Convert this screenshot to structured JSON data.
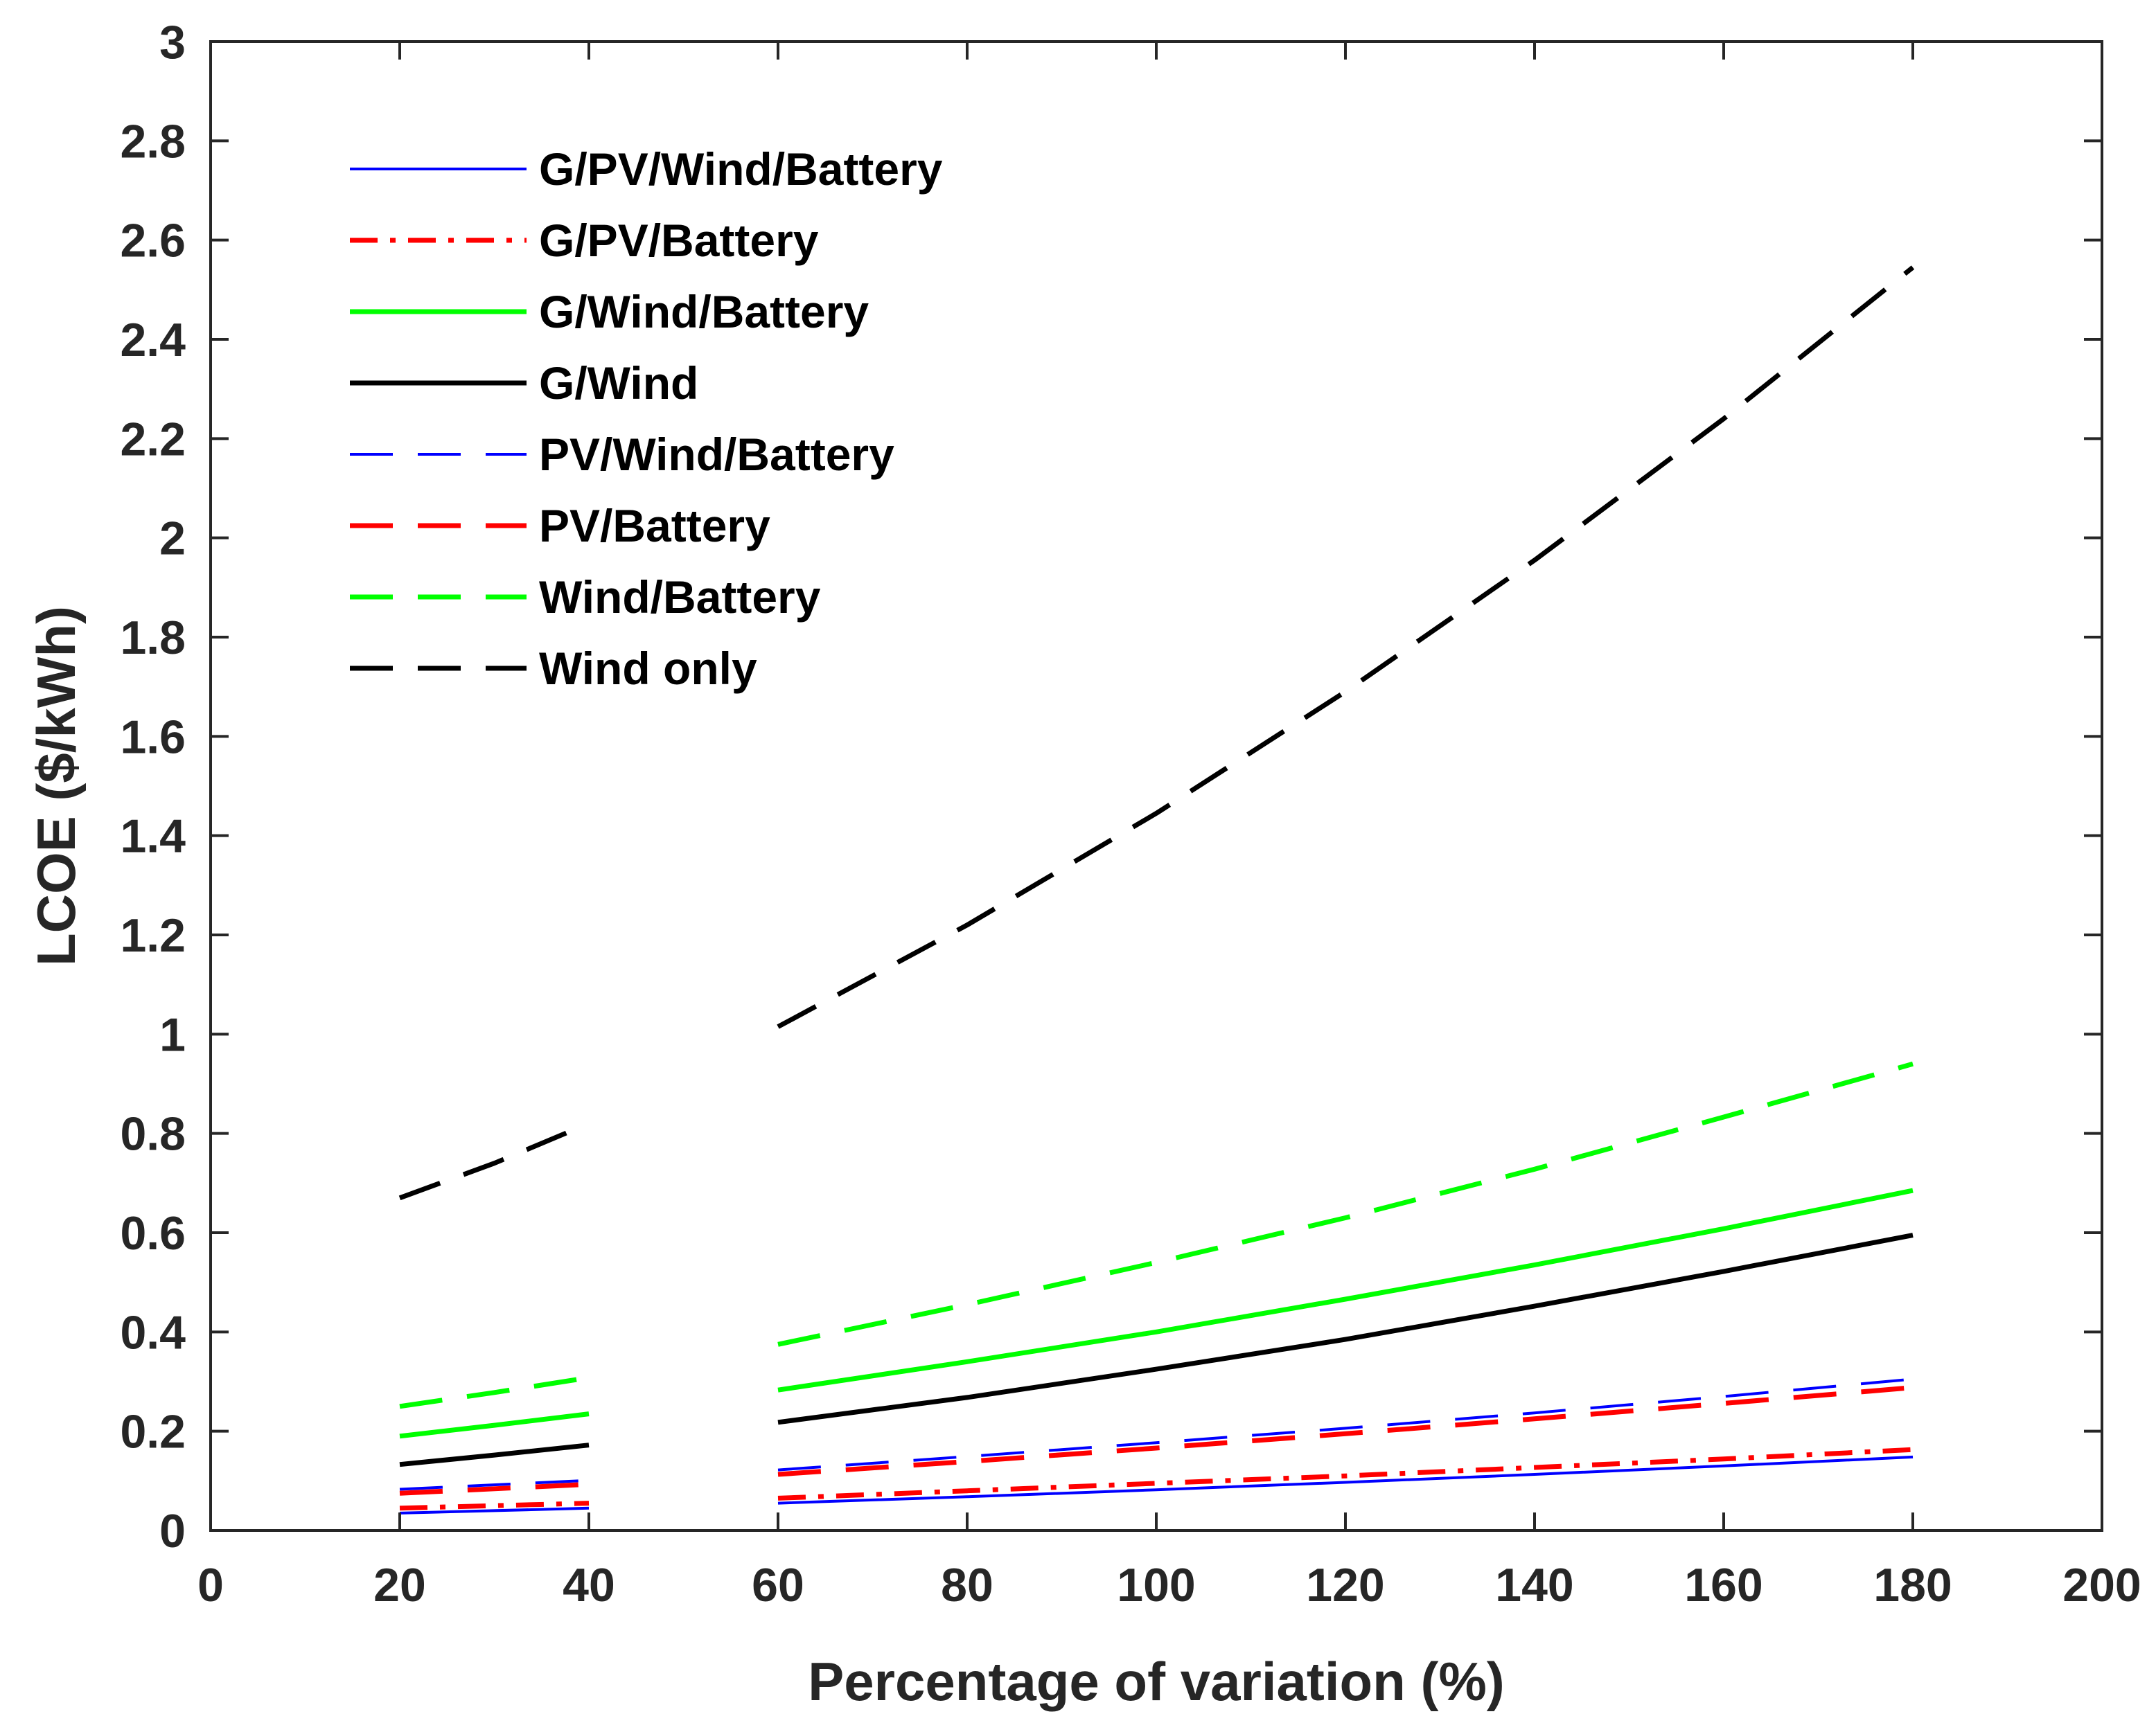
{
  "chart_data": {
    "type": "line",
    "title": "",
    "xlabel": "Percentage of variation (%)",
    "ylabel": "LCOE ($/kWh)",
    "xlim": [
      0,
      200
    ],
    "ylim": [
      0,
      3
    ],
    "xticks": [
      0,
      20,
      40,
      60,
      80,
      100,
      120,
      140,
      160,
      180,
      200
    ],
    "xtick_labels": [
      "0",
      "20",
      "40",
      "60",
      "80",
      "100",
      "120",
      "140",
      "160",
      "180",
      "200"
    ],
    "yticks": [
      0,
      0.2,
      0.4,
      0.6,
      0.8,
      1,
      1.2,
      1.4,
      1.6,
      1.8,
      2,
      2.2,
      2.4,
      2.6,
      2.8,
      3
    ],
    "ytick_labels": [
      "0",
      "0.2",
      "0.4",
      "0.6",
      "0.8",
      "1",
      "1.2",
      "1.4",
      "1.6",
      "1.8",
      "2",
      "2.2",
      "2.4",
      "2.6",
      "2.8",
      "3"
    ],
    "legend_position": "top-left",
    "series": [
      {
        "name": "G/PV/Wind/Battery",
        "color": "#0000ff",
        "style": "solid",
        "weight": "thin",
        "segments": [
          {
            "x": [
              20,
              40
            ],
            "y": [
              0.035,
              0.045
            ]
          },
          {
            "x": [
              60,
              80,
              100,
              120,
              140,
              160,
              180
            ],
            "y": [
              0.055,
              0.068,
              0.082,
              0.097,
              0.113,
              0.13,
              0.148
            ]
          }
        ]
      },
      {
        "name": "G/PV/Battery",
        "color": "#ff0000",
        "style": "dashdot",
        "weight": "thick",
        "segments": [
          {
            "x": [
              20,
              40
            ],
            "y": [
              0.045,
              0.055
            ]
          },
          {
            "x": [
              60,
              80,
              100,
              120,
              140,
              160,
              180
            ],
            "y": [
              0.065,
              0.08,
              0.095,
              0.11,
              0.127,
              0.144,
              0.163
            ]
          }
        ]
      },
      {
        "name": "G/Wind/Battery",
        "color": "#00ff00",
        "style": "solid",
        "weight": "thick",
        "segments": [
          {
            "x": [
              20,
              30,
              40
            ],
            "y": [
              0.19,
              0.212,
              0.235
            ]
          },
          {
            "x": [
              60,
              80,
              100,
              120,
              140,
              160,
              180
            ],
            "y": [
              0.283,
              0.34,
              0.4,
              0.466,
              0.535,
              0.608,
              0.685
            ]
          }
        ]
      },
      {
        "name": "G/Wind",
        "color": "#000000",
        "style": "solid",
        "weight": "thick",
        "segments": [
          {
            "x": [
              20,
              30,
              40
            ],
            "y": [
              0.133,
              0.152,
              0.172
            ]
          },
          {
            "x": [
              60,
              80,
              100,
              120,
              140,
              160,
              180
            ],
            "y": [
              0.218,
              0.268,
              0.325,
              0.385,
              0.452,
              0.522,
              0.595
            ]
          }
        ]
      },
      {
        "name": "PV/Wind/Battery",
        "color": "#0000ff",
        "style": "dashed",
        "weight": "thin",
        "segments": [
          {
            "x": [
              20,
              40
            ],
            "y": [
              0.083,
              0.101
            ]
          },
          {
            "x": [
              60,
              80,
              100,
              120,
              140,
              160,
              180
            ],
            "y": [
              0.122,
              0.149,
              0.177,
              0.206,
              0.237,
              0.27,
              0.305
            ]
          }
        ]
      },
      {
        "name": "PV/Battery",
        "color": "#ff0000",
        "style": "dashed",
        "weight": "thick",
        "segments": [
          {
            "x": [
              20,
              40
            ],
            "y": [
              0.075,
              0.093
            ]
          },
          {
            "x": [
              60,
              80,
              100,
              120,
              140,
              160,
              180
            ],
            "y": [
              0.113,
              0.139,
              0.166,
              0.195,
              0.225,
              0.256,
              0.288
            ]
          }
        ]
      },
      {
        "name": "Wind/Battery",
        "color": "#00ff00",
        "style": "dashed",
        "weight": "thick",
        "segments": [
          {
            "x": [
              20,
              30,
              40
            ],
            "y": [
              0.25,
              0.278,
              0.308
            ]
          },
          {
            "x": [
              60,
              80,
              100,
              120,
              140,
              160,
              180
            ],
            "y": [
              0.375,
              0.455,
              0.54,
              0.63,
              0.728,
              0.833,
              0.94
            ]
          }
        ]
      },
      {
        "name": "Wind only",
        "color": "#000000",
        "style": "dashed",
        "weight": "thick",
        "segments": [
          {
            "x": [
              20,
              30,
              40
            ],
            "y": [
              0.67,
              0.74,
              0.82
            ]
          },
          {
            "x": [
              60,
              80,
              100,
              120,
              140,
              160,
              180
            ],
            "y": [
              1.015,
              1.22,
              1.445,
              1.69,
              1.955,
              2.24,
              2.545
            ]
          }
        ]
      }
    ]
  }
}
